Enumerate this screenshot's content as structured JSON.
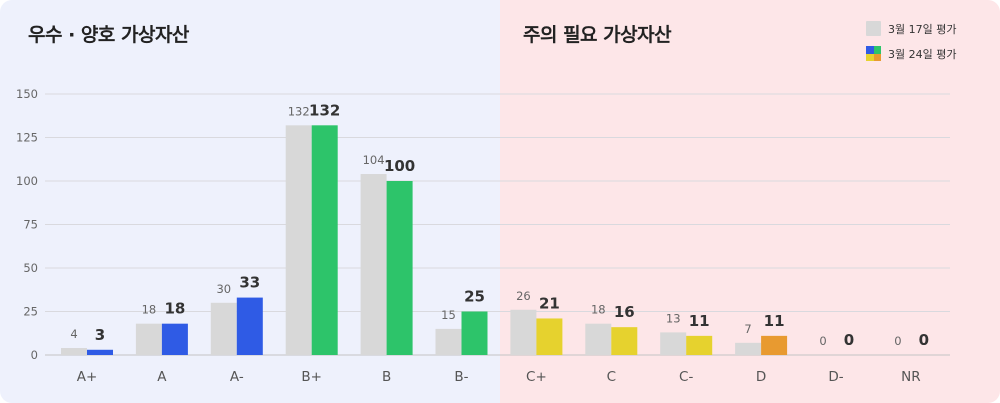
{
  "sections": {
    "left_title": "우수 · 양호 가상자산",
    "right_title": "주의 필요 가상자산"
  },
  "legend": {
    "prev_label": "3월 17일 평가",
    "curr_label": "3월 24일 평가"
  },
  "colors": {
    "prev_bar": "#d8d8d8",
    "blue": "#2f5be5",
    "green": "#2dc46a",
    "yellow": "#e6d22e",
    "orange": "#e89a30",
    "left_bg": "#eef1fc",
    "right_bg": "#fde6e8"
  },
  "chart_data": {
    "type": "bar",
    "categories": [
      "A+",
      "A",
      "A-",
      "B+",
      "B",
      "B-",
      "C+",
      "C",
      "C-",
      "D",
      "D-",
      "NR"
    ],
    "series": [
      {
        "name": "3월 17일 평가",
        "values": [
          4,
          18,
          30,
          132,
          104,
          15,
          26,
          18,
          13,
          7,
          0,
          0
        ]
      },
      {
        "name": "3월 24일 평가",
        "values": [
          3,
          18,
          33,
          132,
          100,
          25,
          21,
          16,
          11,
          11,
          0,
          0
        ]
      }
    ],
    "current_bar_colors": [
      "blue",
      "blue",
      "blue",
      "green",
      "green",
      "green",
      "yellow",
      "yellow",
      "yellow",
      "orange",
      "orange",
      "orange"
    ],
    "yticks": [
      0,
      25,
      50,
      75,
      100,
      125,
      150
    ],
    "ylim": [
      0,
      150
    ],
    "grid": true,
    "legend_position": "top-right"
  }
}
